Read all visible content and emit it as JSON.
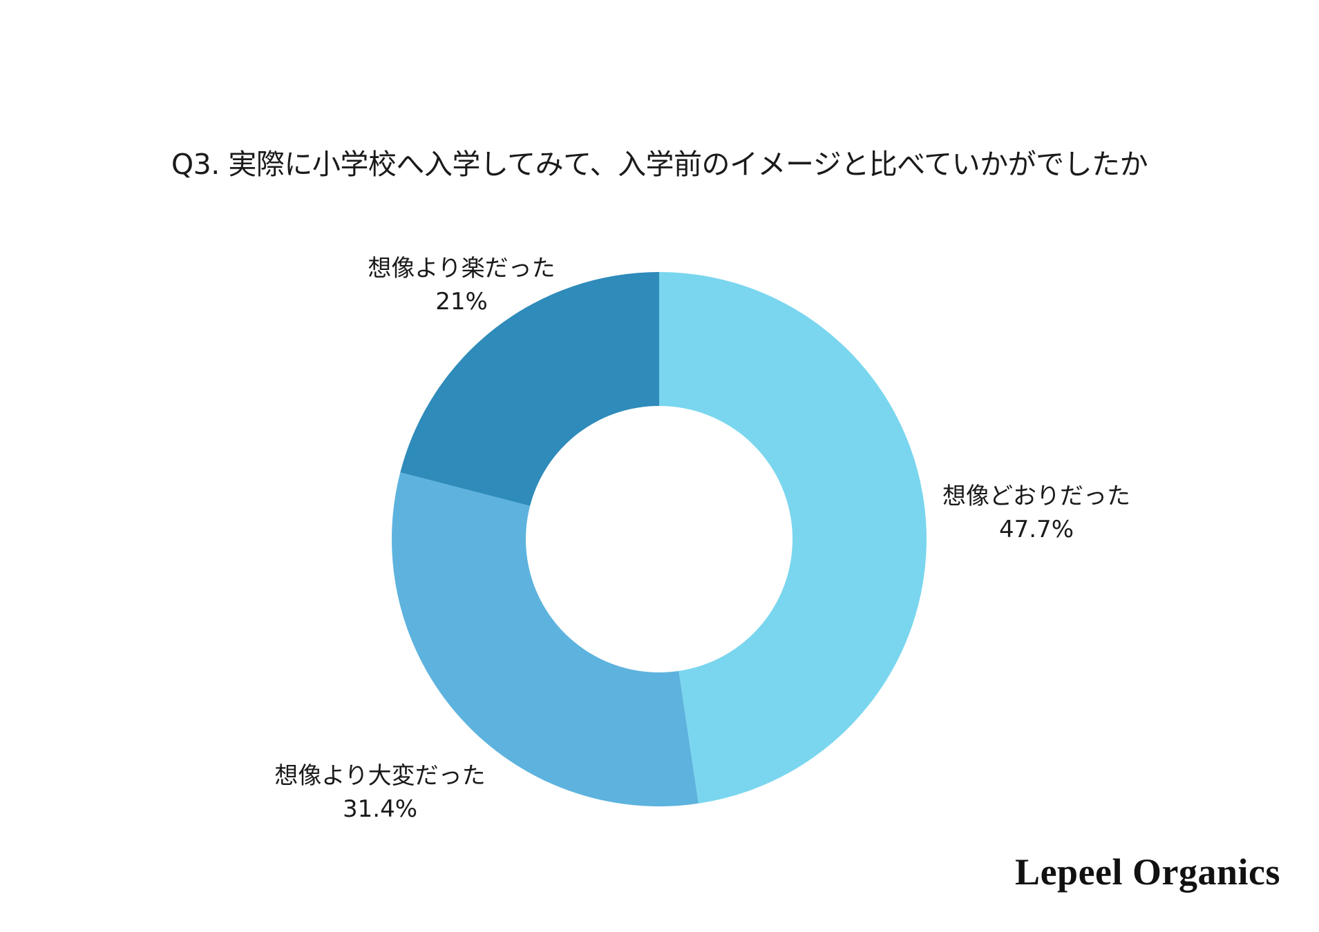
{
  "title": "Q3. 実際に小学校へ入学してみて、入学前のイメージと比べていかがでしたか",
  "brand": "Lepeel Organics",
  "labels": [
    {
      "name": "想像どおりだった",
      "pct": "47.7%"
    },
    {
      "name": "想像より大変だった",
      "pct": "31.4%"
    },
    {
      "name": "想像より楽だった",
      "pct": "21%"
    }
  ],
  "colors": {
    "slice_1": "#7AD6EE",
    "slice_2": "#5DB3DE",
    "slice_3": "#2E8BBA",
    "background": "#FFFFFF",
    "text": "#1A1A1A"
  },
  "chart_data": {
    "type": "pie",
    "variant": "donut",
    "title": "Q3. 実際に小学校へ入学してみて、入学前のイメージと比べていかがでしたか",
    "categories": [
      "想像どおりだった",
      "想像より大変だった",
      "想像より楽だった"
    ],
    "values": [
      47.7,
      31.4,
      21
    ],
    "unit": "%",
    "colors": [
      "#7AD6EE",
      "#5DB3DE",
      "#2E8BBA"
    ],
    "start_angle_deg": 0,
    "direction": "clockwise",
    "inner_radius_ratio": 0.5,
    "legend": "none (direct labels)",
    "data_labels": [
      "想像どおりだった 47.7%",
      "想像より大変だった 31.4%",
      "想像より楽だった 21%"
    ]
  }
}
